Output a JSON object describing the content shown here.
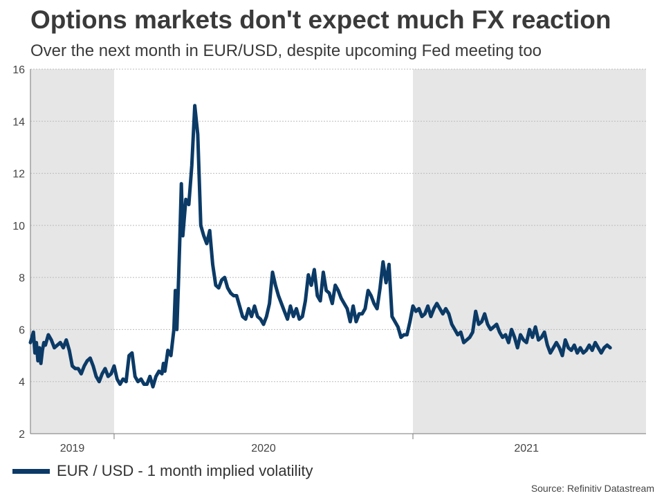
{
  "header": {
    "title": "Options markets don't expect much FX reaction",
    "subtitle": "Over the next month in EUR/USD, despite upcoming Fed meeting too"
  },
  "legend": {
    "label": "EUR / USD - 1 month implied volatility"
  },
  "footer": {
    "source": "Source: Refinitiv Datastream"
  },
  "colors": {
    "line": "#0b3a66",
    "shade": "#e6e6e6",
    "grid": "#bbbbbb",
    "axis": "#777777"
  },
  "chart_data": {
    "type": "line",
    "title": "Options markets don't expect much FX reaction",
    "subtitle": "Over the next month in EUR/USD, despite upcoming Fed meeting too",
    "xlabel": "",
    "ylabel": "",
    "ylim": [
      2,
      16
    ],
    "yticks": [
      2,
      4,
      6,
      8,
      10,
      12,
      14,
      16
    ],
    "xlim": [
      2019.72,
      2021.78
    ],
    "year_boundaries": [
      2020.0,
      2021.0
    ],
    "year_labels": [
      {
        "label": "2019",
        "x": 2019.86
      },
      {
        "label": "2020",
        "x": 2020.5
      },
      {
        "label": "2021",
        "x": 2021.38
      }
    ],
    "shaded_years": [
      [
        2019.72,
        2020.0
      ],
      [
        2021.0,
        2021.78
      ]
    ],
    "grid": "horizontal dotted",
    "legend_position": "bottom-left",
    "series": [
      {
        "name": "EUR / USD - 1 month implied volatility",
        "x": [
          2019.72,
          2019.73,
          2019.735,
          2019.74,
          2019.745,
          2019.75,
          2019.755,
          2019.76,
          2019.765,
          2019.77,
          2019.78,
          2019.79,
          2019.8,
          2019.81,
          2019.82,
          2019.83,
          2019.84,
          2019.85,
          2019.86,
          2019.87,
          2019.88,
          2019.89,
          2019.9,
          2019.91,
          2019.92,
          2019.93,
          2019.94,
          2019.95,
          2019.96,
          2019.97,
          2019.98,
          2019.99,
          2020.0,
          2020.01,
          2020.02,
          2020.03,
          2020.04,
          2020.05,
          2020.06,
          2020.07,
          2020.08,
          2020.09,
          2020.1,
          2020.11,
          2020.12,
          2020.13,
          2020.14,
          2020.15,
          2020.16,
          2020.165,
          2020.17,
          2020.175,
          2020.18,
          2020.19,
          2020.2,
          2020.205,
          2020.21,
          2020.215,
          2020.22,
          2020.225,
          2020.23,
          2020.24,
          2020.25,
          2020.26,
          2020.27,
          2020.28,
          2020.29,
          2020.3,
          2020.31,
          2020.32,
          2020.33,
          2020.34,
          2020.35,
          2020.36,
          2020.37,
          2020.38,
          2020.39,
          2020.4,
          2020.41,
          2020.42,
          2020.43,
          2020.44,
          2020.45,
          2020.46,
          2020.47,
          2020.48,
          2020.49,
          2020.5,
          2020.51,
          2020.52,
          2020.53,
          2020.54,
          2020.55,
          2020.56,
          2020.57,
          2020.58,
          2020.59,
          2020.6,
          2020.61,
          2020.62,
          2020.63,
          2020.64,
          2020.65,
          2020.66,
          2020.67,
          2020.68,
          2020.69,
          2020.7,
          2020.71,
          2020.72,
          2020.73,
          2020.74,
          2020.75,
          2020.76,
          2020.77,
          2020.78,
          2020.79,
          2020.8,
          2020.81,
          2020.82,
          2020.83,
          2020.84,
          2020.85,
          2020.86,
          2020.87,
          2020.88,
          2020.89,
          2020.9,
          2020.91,
          2020.92,
          2020.93,
          2020.94,
          2020.95,
          2020.96,
          2020.97,
          2020.98,
          2020.99,
          2021.0,
          2021.01,
          2021.02,
          2021.03,
          2021.04,
          2021.05,
          2021.06,
          2021.07,
          2021.08,
          2021.09,
          2021.1,
          2021.11,
          2021.12,
          2021.13,
          2021.14,
          2021.15,
          2021.16,
          2021.17,
          2021.18,
          2021.19,
          2021.2,
          2021.21,
          2021.22,
          2021.23,
          2021.24,
          2021.25,
          2021.26,
          2021.27,
          2021.28,
          2021.29,
          2021.3,
          2021.31,
          2021.32,
          2021.33,
          2021.34,
          2021.35,
          2021.36,
          2021.37,
          2021.38,
          2021.39,
          2021.4,
          2021.41,
          2021.42,
          2021.43,
          2021.44,
          2021.45,
          2021.46,
          2021.47,
          2021.48,
          2021.49,
          2021.5,
          2021.51,
          2021.52,
          2021.53,
          2021.54,
          2021.55,
          2021.56,
          2021.57,
          2021.58,
          2021.59,
          2021.6,
          2021.61,
          2021.62,
          2021.63,
          2021.64,
          2021.65,
          2021.66
        ],
        "values": [
          5.5,
          5.9,
          5.1,
          5.5,
          4.8,
          5.3,
          4.7,
          5.2,
          5.5,
          5.4,
          5.8,
          5.6,
          5.3,
          5.4,
          5.5,
          5.3,
          5.6,
          5.2,
          4.6,
          4.5,
          4.5,
          4.3,
          4.6,
          4.8,
          4.9,
          4.6,
          4.2,
          4.0,
          4.3,
          4.5,
          4.2,
          4.3,
          4.6,
          4.1,
          3.9,
          4.1,
          4.0,
          5.0,
          5.1,
          4.2,
          4.0,
          4.1,
          3.9,
          3.9,
          4.2,
          3.8,
          4.2,
          4.4,
          4.3,
          4.7,
          4.4,
          4.8,
          5.2,
          5.0,
          6.0,
          7.5,
          6.0,
          7.7,
          9.5,
          11.6,
          9.6,
          11.0,
          10.8,
          12.3,
          14.6,
          13.5,
          10.0,
          9.6,
          9.3,
          9.8,
          8.5,
          7.7,
          7.6,
          7.9,
          8.0,
          7.6,
          7.4,
          7.3,
          7.3,
          6.9,
          6.5,
          6.4,
          6.8,
          6.5,
          6.9,
          6.5,
          6.4,
          6.2,
          6.5,
          7.0,
          8.2,
          7.7,
          7.3,
          7.0,
          6.7,
          6.4,
          6.9,
          6.5,
          6.8,
          6.4,
          6.5,
          7.1,
          8.1,
          7.7,
          8.3,
          7.3,
          7.1,
          8.2,
          7.5,
          7.4,
          7.0,
          7.7,
          7.5,
          7.2,
          7.0,
          6.8,
          6.3,
          6.9,
          6.3,
          6.6,
          6.6,
          6.8,
          7.5,
          7.3,
          7.0,
          6.8,
          7.6,
          8.6,
          7.8,
          8.5,
          6.5,
          6.3,
          6.1,
          5.7,
          5.8,
          5.8,
          6.3,
          6.9,
          6.7,
          6.8,
          6.5,
          6.6,
          6.9,
          6.5,
          6.8,
          7.0,
          6.8,
          6.6,
          6.8,
          6.6,
          6.2,
          6.0,
          5.8,
          5.9,
          5.5,
          5.6,
          5.7,
          5.9,
          6.7,
          6.2,
          6.3,
          6.6,
          6.2,
          6.0,
          6.1,
          6.2,
          5.9,
          5.7,
          5.8,
          5.5,
          6.0,
          5.7,
          5.3,
          5.8,
          5.6,
          5.5,
          6.0,
          5.7,
          6.1,
          5.6,
          5.7,
          5.9,
          5.4,
          5.1,
          5.3,
          5.5,
          5.3,
          5.0,
          5.6,
          5.3,
          5.2,
          5.4,
          5.1,
          5.3,
          5.1,
          5.2,
          5.4,
          5.2,
          5.5,
          5.3,
          5.1,
          5.3,
          5.4,
          5.3
        ]
      }
    ]
  }
}
